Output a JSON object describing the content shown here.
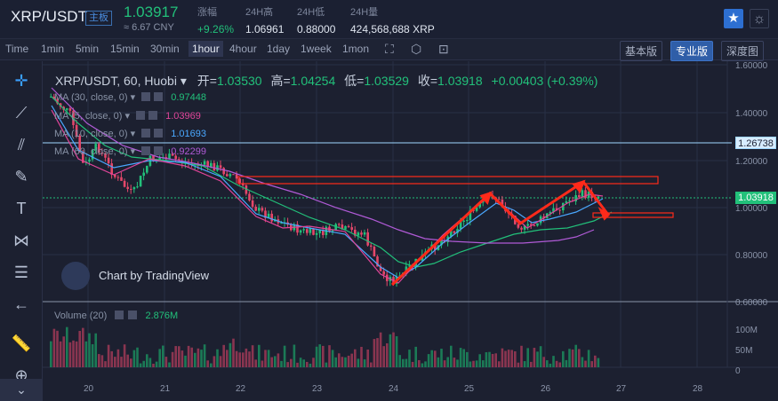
{
  "ticker": {
    "pair": "XRP/USDT",
    "badge": "主板",
    "price": "1.03917",
    "cny": "≈ 6.67 CNY",
    "change_label": "涨幅",
    "change_value": "+9.26%",
    "high_label": "24H高",
    "high_value": "1.06961",
    "low_label": "24H低",
    "low_value": "0.88000",
    "volume_label": "24H量",
    "volume_value": "424,568,688 XRP",
    "star_icon": "star-icon",
    "theme_icon": "sun-icon"
  },
  "toolbar": {
    "intervals": [
      "Time",
      "1min",
      "5min",
      "15min",
      "30min",
      "1hour",
      "4hour",
      "1day",
      "1week",
      "1mon"
    ],
    "active_interval": "1hour",
    "views": [
      "基本版",
      "专业版",
      "深度图"
    ],
    "active_view": "专业版"
  },
  "chart": {
    "symbol_legend": "XRP/USDT, 60, Huobi",
    "open_label": "开=",
    "open_value": "1.03530",
    "high_label": "高=",
    "high_value": "1.04254",
    "low_label": "低=",
    "low_value": "1.03529",
    "close_label": "收=",
    "close_value": "1.03918",
    "change_text": "+0.00403 (+0.39%)",
    "ma": [
      {
        "label": "MA (30, close, 0)",
        "value": "0.97448",
        "color": "#22c07a"
      },
      {
        "label": "MA (5, close, 0)",
        "value": "1.03969",
        "color": "#e0459a"
      },
      {
        "label": "MA (10, close, 0)",
        "value": "1.01693",
        "color": "#4aa8ff"
      },
      {
        "label": "MA (60, close, 0)",
        "value": "0.92299",
        "color": "#b05ad6"
      }
    ],
    "volume_label": "Volume (20)",
    "volume_value": "2.876M",
    "branding": "Chart by TradingView",
    "price_axis": [
      "1.60000",
      "1.40000",
      "1.20000",
      "1.00000",
      "0.80000",
      "0.60000"
    ],
    "volume_axis": [
      "100M",
      "50M",
      "0"
    ],
    "time_axis": [
      "20",
      "21",
      "22",
      "23",
      "24",
      "25",
      "26",
      "27",
      "28"
    ],
    "tag_resistance": "1.26738",
    "tag_current": "1.03918",
    "colors": {
      "up": "#22c07a",
      "down": "#e4476a",
      "annotation": "#ff2a1a"
    }
  }
}
